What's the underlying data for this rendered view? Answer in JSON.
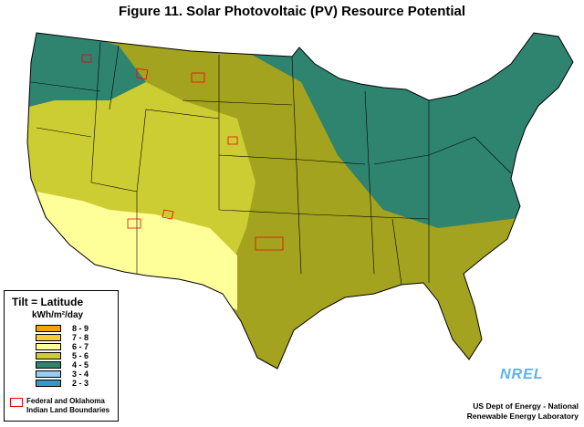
{
  "header": {
    "title": "Figure 11.  Solar Photovoltaic (PV) Resource Potential"
  },
  "legend": {
    "title": "Tilt = Latitude",
    "unit": "kWh/m²/day",
    "items": [
      {
        "label": "8 - 9",
        "color": "#f5a300"
      },
      {
        "label": "7 - 8",
        "color": "#ffcc33"
      },
      {
        "label": "6 - 7",
        "color": "#ffff99"
      },
      {
        "label": "5 - 6",
        "color": "#cccc33"
      },
      {
        "label": "4 - 5",
        "color": "#2f8470"
      },
      {
        "label": "3 - 4",
        "color": "#99ccee"
      },
      {
        "label": "2 - 3",
        "color": "#3399cc"
      }
    ],
    "boundaries": "Federal and Oklahoma Indian Land Boundaries"
  },
  "credit": {
    "line1": "US Dept of Energy - National",
    "line2": "Renewable Energy Laboratory"
  },
  "logo": "NREL"
}
